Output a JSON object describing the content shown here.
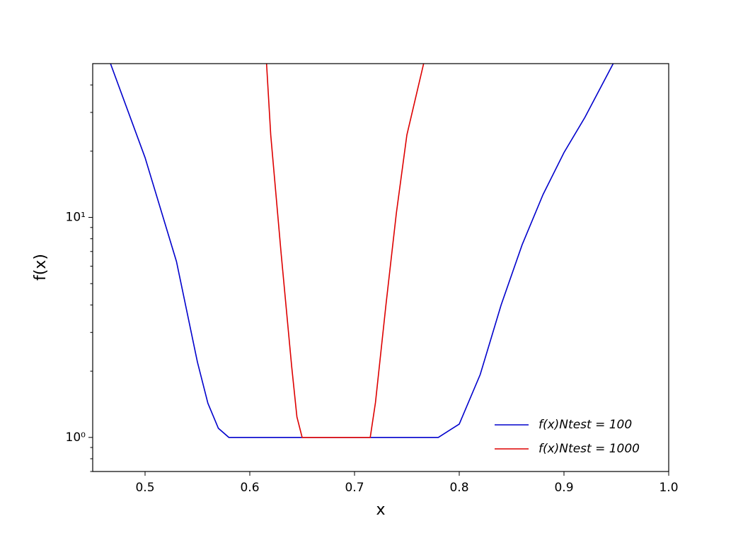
{
  "chart_data": {
    "type": "line",
    "xlabel": "x",
    "ylabel": "f(x)",
    "yscale": "log",
    "xlim": [
      0.45,
      1.0
    ],
    "xticks": [
      0.5,
      0.6,
      0.7,
      0.8,
      0.9,
      {
        "value": 1.0,
        "label": "1.0"
      }
    ],
    "ylim": [
      0.7,
      50
    ],
    "yticks": [
      {
        "value": 1,
        "label": "10⁰"
      },
      {
        "value": 10,
        "label": "10¹"
      }
    ],
    "yminorticks": [
      0.7,
      0.8,
      0.9,
      2,
      3,
      4,
      5,
      6,
      7,
      8,
      9,
      20,
      30,
      40
    ],
    "legend": "lower right",
    "series": [
      {
        "name": "f(x)Ntest = 100",
        "color": "#0000cc",
        "x": [
          0.467,
          0.5,
          0.53,
          0.55,
          0.56,
          0.57,
          0.58,
          0.78,
          0.8,
          0.82,
          0.84,
          0.86,
          0.88,
          0.9,
          0.92,
          0.947
        ],
        "values": [
          50,
          18.7,
          6.3,
          2.2,
          1.43,
          1.1,
          1.0,
          1.0,
          1.15,
          1.93,
          4.0,
          7.5,
          12.7,
          19.7,
          28.5,
          50
        ]
      },
      {
        "name": "f(x)Ntest = 1000",
        "color": "#dd0000",
        "x": [
          0.616,
          0.62,
          0.63,
          0.64,
          0.645,
          0.65,
          0.715,
          0.72,
          0.73,
          0.74,
          0.75,
          0.766
        ],
        "values": [
          50,
          23.7,
          6.8,
          2.1,
          1.24,
          1.0,
          1.0,
          1.44,
          4.0,
          10.5,
          23.7,
          50
        ]
      }
    ]
  }
}
